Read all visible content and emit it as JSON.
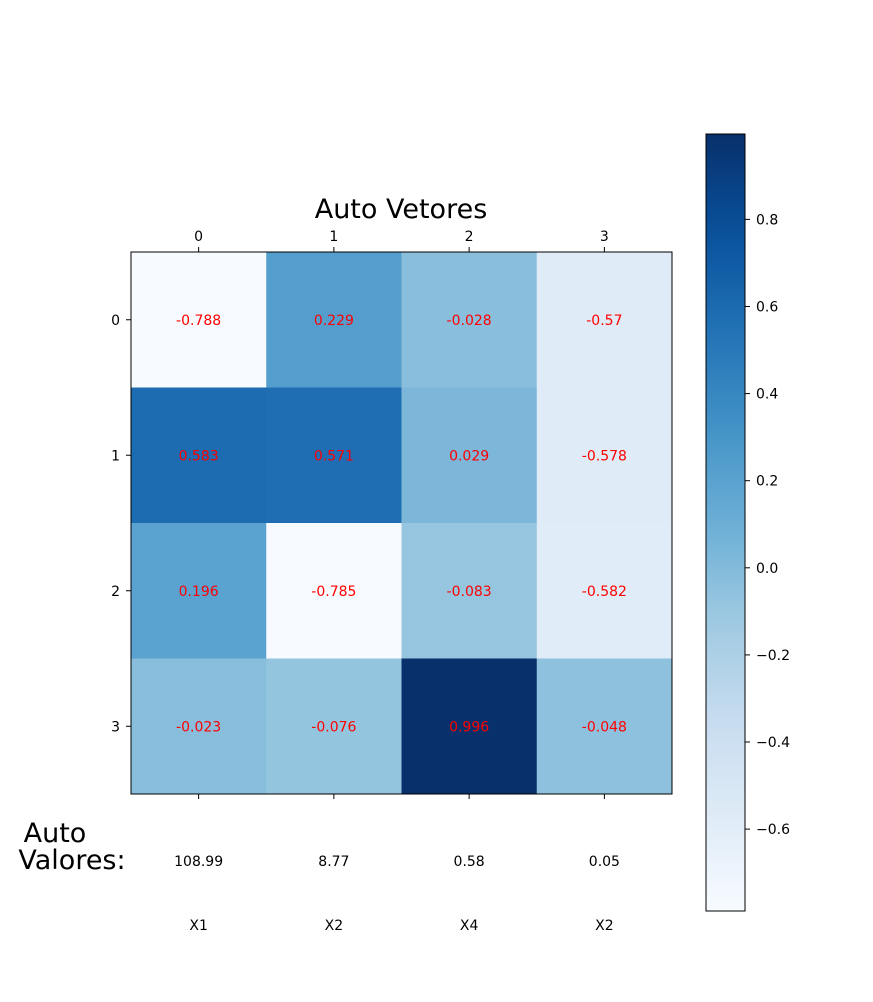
{
  "chart_data": {
    "type": "heatmap",
    "title": "Auto Vetores",
    "colormap": "Blues",
    "x_tick_labels": [
      "0",
      "1",
      "2",
      "3"
    ],
    "y_tick_labels": [
      "0",
      "1",
      "2",
      "3"
    ],
    "values": [
      [
        -0.788,
        0.229,
        -0.028,
        -0.57
      ],
      [
        0.583,
        0.571,
        0.029,
        -0.578
      ],
      [
        0.196,
        -0.785,
        -0.083,
        -0.582
      ],
      [
        -0.023,
        -0.076,
        0.996,
        -0.048
      ]
    ],
    "cell_labels": [
      [
        "-0.788",
        "0.229",
        "-0.028",
        "-0.57"
      ],
      [
        "0.583",
        "0.571",
        "0.029",
        "-0.578"
      ],
      [
        "0.196",
        "-0.785",
        "-0.083",
        "-0.582"
      ],
      [
        "-0.023",
        "-0.076",
        "0.996",
        "-0.048"
      ]
    ],
    "cell_label_color": "#ff0000",
    "vmin": -0.788,
    "vmax": 0.996,
    "colorbar": {
      "ticks": [
        0.8,
        0.6,
        0.4,
        0.2,
        0.0,
        -0.2,
        -0.4,
        -0.6
      ],
      "tick_labels": [
        "0.8",
        "0.6",
        "0.4",
        "0.2",
        "0.0",
        "−0.2",
        "−0.4",
        "−0.6"
      ]
    },
    "eigen_label_line1": "Auto",
    "eigen_label_line2": "Valores:",
    "eigenvalues": [
      "108.99",
      "8.77",
      "0.58",
      "0.05"
    ],
    "variables": [
      "X1",
      "X2",
      "X4",
      "X2"
    ]
  }
}
